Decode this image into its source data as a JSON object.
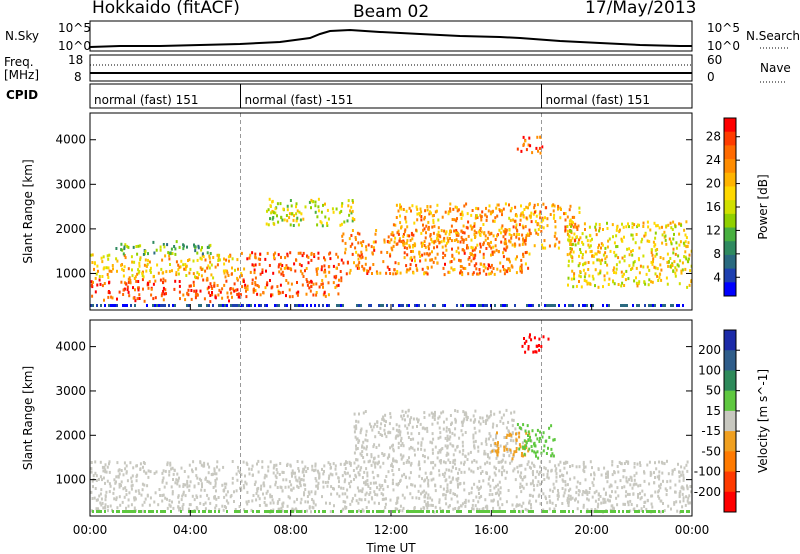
{
  "header": {
    "station": "Hokkaido (fitACF)",
    "beam": "Beam 02",
    "date": "17/May/2013"
  },
  "top_panels": {
    "nsky_label": "N.Sky",
    "nsky_ticks": [
      "10^5",
      "10^0"
    ],
    "nsearch_label": "N.Search",
    "nsearch_ticks": [
      "10^5",
      "10^0"
    ],
    "freq_label": "Freq.",
    "freq_unit": "[MHz]",
    "freq_ticks": [
      "18",
      "8"
    ],
    "nave_label": "Nave",
    "nave_ticks": [
      "60",
      "0"
    ],
    "cpid_label": "CPID",
    "cpid_segments": [
      {
        "label": "normal (fast) 151",
        "start_hour": 0,
        "end_hour": 6
      },
      {
        "label": "normal (fast) -151",
        "start_hour": 6,
        "end_hour": 18
      },
      {
        "label": "normal (fast) 151",
        "start_hour": 18,
        "end_hour": 24
      }
    ]
  },
  "chart_data": [
    {
      "type": "heatmap",
      "panel": "power",
      "ylabel": "Slant Range [km]",
      "xlabel": "Time UT",
      "xlim": [
        0,
        24
      ],
      "ylim": [
        180,
        4600
      ],
      "yticks": [
        "1000",
        "2000",
        "3000",
        "4000"
      ],
      "colorbar": {
        "label": "Power [dB]",
        "ticks": [
          "28",
          "24",
          "20",
          "16",
          "12",
          "8",
          "4"
        ],
        "colors": [
          "#ff0000",
          "#ff3c00",
          "#ff6a00",
          "#ff8c00",
          "#ffb400",
          "#ffd800",
          "#d0e000",
          "#90d000",
          "#48b040",
          "#2f8a60",
          "#2a6a80",
          "#1e40b0",
          "#0000ff"
        ]
      },
      "regions": [
        {
          "t0": 0.0,
          "t1": 6.0,
          "r0": 400,
          "r1": 900,
          "level": 27
        },
        {
          "t0": 0.0,
          "t1": 6.0,
          "r0": 900,
          "r1": 1450,
          "level": 20
        },
        {
          "t0": 1.0,
          "t1": 5.0,
          "r0": 1450,
          "r1": 1750,
          "level": 12
        },
        {
          "t0": 6.0,
          "t1": 10.0,
          "r0": 500,
          "r1": 1500,
          "level": 26
        },
        {
          "t0": 10.0,
          "t1": 17.5,
          "r0": 1000,
          "r1": 2000,
          "level": 24
        },
        {
          "t0": 12.0,
          "t1": 19.5,
          "r0": 1600,
          "r1": 2600,
          "level": 22
        },
        {
          "t0": 17.0,
          "t1": 18.0,
          "r0": 3700,
          "r1": 4100,
          "level": 26
        },
        {
          "t0": 19.0,
          "t1": 24.0,
          "r0": 700,
          "r1": 2200,
          "level": 18
        },
        {
          "t0": 7.0,
          "t1": 10.5,
          "r0": 2100,
          "r1": 2700,
          "level": 16
        }
      ]
    },
    {
      "type": "heatmap",
      "panel": "velocity",
      "ylabel": "Slant Range [km]",
      "xlabel": "Time UT",
      "xlim": [
        0,
        24
      ],
      "ylim": [
        180,
        4600
      ],
      "yticks": [
        "1000",
        "2000",
        "3000",
        "4000"
      ],
      "xticks": [
        "00:00",
        "04:00",
        "08:00",
        "12:00",
        "16:00",
        "20:00",
        "00:00"
      ],
      "colorbar": {
        "label": "Velocity [m s^-1]",
        "ticks": [
          "200",
          "100",
          "50",
          "15",
          "-15",
          "-50",
          "-100",
          "-200"
        ],
        "colors": [
          "#1c2aa8",
          "#2f5d8a",
          "#2e8a5a",
          "#5fc840",
          "#c8c8c0",
          "#f0a020",
          "#ff7a00",
          "#ff3a00",
          "#ff0000"
        ]
      },
      "regions": [
        {
          "t0": 0.0,
          "t1": 24.0,
          "r0": 300,
          "r1": 1450,
          "velocity": 0
        },
        {
          "t0": 10.5,
          "t1": 17.0,
          "r0": 1400,
          "r1": 2600,
          "velocity": 0
        },
        {
          "t0": 16.0,
          "t1": 17.5,
          "r0": 1500,
          "r1": 2100,
          "velocity": -40
        },
        {
          "t0": 17.0,
          "t1": 18.5,
          "r0": 1500,
          "r1": 2300,
          "velocity": 40
        },
        {
          "t0": 17.2,
          "t1": 18.3,
          "r0": 3900,
          "r1": 4300,
          "velocity": -200
        }
      ]
    }
  ],
  "xlabel": "Time UT"
}
